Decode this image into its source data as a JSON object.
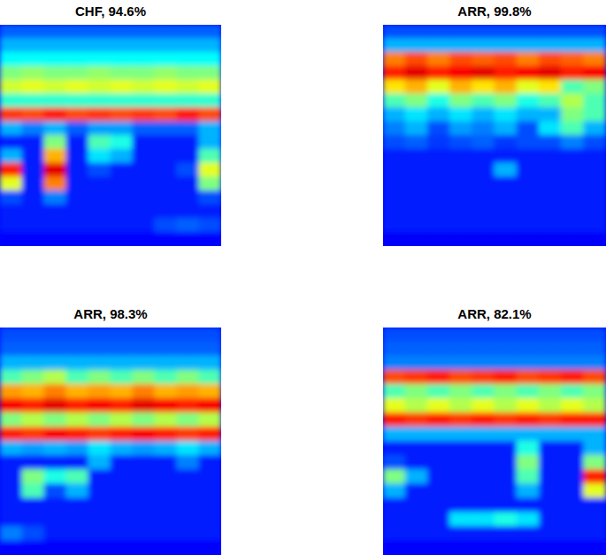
{
  "chart_data": [
    {
      "type": "heatmap",
      "title": "CHF, 94.6%",
      "tick_labels": false,
      "zlim": [
        0,
        1
      ],
      "cells": [
        [
          0.22,
          0.22,
          0.22,
          0.22,
          0.22,
          0.22,
          0.22,
          0.22,
          0.22,
          0.22
        ],
        [
          0.3,
          0.3,
          0.3,
          0.3,
          0.3,
          0.3,
          0.3,
          0.3,
          0.3,
          0.3
        ],
        [
          0.38,
          0.38,
          0.38,
          0.38,
          0.38,
          0.38,
          0.38,
          0.38,
          0.38,
          0.38
        ],
        [
          0.5,
          0.52,
          0.5,
          0.5,
          0.52,
          0.5,
          0.5,
          0.52,
          0.5,
          0.5
        ],
        [
          0.58,
          0.6,
          0.58,
          0.6,
          0.58,
          0.6,
          0.58,
          0.6,
          0.58,
          0.6
        ],
        [
          0.42,
          0.42,
          0.42,
          0.42,
          0.42,
          0.42,
          0.42,
          0.42,
          0.42,
          0.42
        ],
        [
          0.82,
          0.8,
          0.85,
          0.8,
          0.82,
          0.8,
          0.82,
          0.8,
          0.85,
          0.8
        ],
        [
          0.3,
          0.25,
          0.3,
          0.22,
          0.28,
          0.28,
          0.22,
          0.22,
          0.22,
          0.3
        ],
        [
          0.15,
          0.15,
          0.5,
          0.15,
          0.45,
          0.4,
          0.15,
          0.15,
          0.15,
          0.3
        ],
        [
          0.3,
          0.15,
          0.7,
          0.15,
          0.35,
          0.3,
          0.15,
          0.15,
          0.15,
          0.45
        ],
        [
          0.85,
          0.15,
          0.9,
          0.15,
          0.2,
          0.15,
          0.15,
          0.15,
          0.2,
          0.6
        ],
        [
          0.6,
          0.15,
          0.75,
          0.15,
          0.15,
          0.15,
          0.15,
          0.15,
          0.15,
          0.5
        ],
        [
          0.2,
          0.15,
          0.25,
          0.15,
          0.15,
          0.15,
          0.15,
          0.15,
          0.15,
          0.2
        ],
        [
          0.15,
          0.15,
          0.15,
          0.15,
          0.15,
          0.15,
          0.15,
          0.15,
          0.15,
          0.15
        ],
        [
          0.15,
          0.15,
          0.15,
          0.15,
          0.15,
          0.15,
          0.15,
          0.2,
          0.22,
          0.2
        ],
        [
          0.13,
          0.13,
          0.13,
          0.13,
          0.13,
          0.13,
          0.13,
          0.13,
          0.13,
          0.13
        ]
      ]
    },
    {
      "type": "heatmap",
      "title": "ARR, 99.8%",
      "tick_labels": false,
      "zlim": [
        0,
        1
      ],
      "cells": [
        [
          0.2,
          0.2,
          0.2,
          0.2,
          0.2,
          0.2,
          0.2,
          0.2,
          0.2,
          0.2
        ],
        [
          0.3,
          0.3,
          0.3,
          0.3,
          0.3,
          0.3,
          0.3,
          0.3,
          0.3,
          0.3
        ],
        [
          0.75,
          0.8,
          0.75,
          0.8,
          0.78,
          0.8,
          0.75,
          0.8,
          0.78,
          0.75
        ],
        [
          0.85,
          0.9,
          0.85,
          0.88,
          0.9,
          0.85,
          0.88,
          0.9,
          0.85,
          0.88
        ],
        [
          0.65,
          0.7,
          0.6,
          0.7,
          0.65,
          0.7,
          0.6,
          0.65,
          0.45,
          0.5
        ],
        [
          0.45,
          0.5,
          0.4,
          0.5,
          0.45,
          0.5,
          0.4,
          0.45,
          0.55,
          0.45
        ],
        [
          0.3,
          0.35,
          0.3,
          0.35,
          0.3,
          0.35,
          0.3,
          0.3,
          0.5,
          0.45
        ],
        [
          0.25,
          0.3,
          0.2,
          0.28,
          0.25,
          0.3,
          0.2,
          0.35,
          0.45,
          0.3
        ],
        [
          0.2,
          0.22,
          0.18,
          0.2,
          0.22,
          0.18,
          0.2,
          0.2,
          0.25,
          0.2
        ],
        [
          0.15,
          0.15,
          0.15,
          0.15,
          0.15,
          0.15,
          0.15,
          0.15,
          0.15,
          0.15
        ],
        [
          0.15,
          0.15,
          0.15,
          0.15,
          0.15,
          0.3,
          0.15,
          0.15,
          0.15,
          0.15
        ],
        [
          0.15,
          0.15,
          0.15,
          0.15,
          0.15,
          0.15,
          0.15,
          0.15,
          0.15,
          0.15
        ],
        [
          0.15,
          0.15,
          0.15,
          0.15,
          0.15,
          0.15,
          0.15,
          0.15,
          0.15,
          0.15
        ],
        [
          0.15,
          0.15,
          0.15,
          0.15,
          0.15,
          0.15,
          0.15,
          0.15,
          0.15,
          0.15
        ],
        [
          0.15,
          0.15,
          0.15,
          0.15,
          0.15,
          0.15,
          0.15,
          0.15,
          0.15,
          0.15
        ],
        [
          0.12,
          0.12,
          0.12,
          0.12,
          0.12,
          0.12,
          0.12,
          0.12,
          0.12,
          0.12
        ]
      ]
    },
    {
      "type": "heatmap",
      "title": "ARR, 98.3%",
      "tick_labels": false,
      "zlim": [
        0,
        1
      ],
      "cells": [
        [
          0.2,
          0.2,
          0.2,
          0.2,
          0.2,
          0.2,
          0.2,
          0.2,
          0.2,
          0.2
        ],
        [
          0.22,
          0.22,
          0.22,
          0.22,
          0.22,
          0.22,
          0.22,
          0.22,
          0.22,
          0.22
        ],
        [
          0.3,
          0.3,
          0.3,
          0.3,
          0.3,
          0.3,
          0.3,
          0.3,
          0.3,
          0.3
        ],
        [
          0.45,
          0.5,
          0.55,
          0.45,
          0.5,
          0.45,
          0.5,
          0.45,
          0.5,
          0.45
        ],
        [
          0.72,
          0.7,
          0.75,
          0.7,
          0.72,
          0.7,
          0.75,
          0.7,
          0.72,
          0.7
        ],
        [
          0.88,
          0.85,
          0.9,
          0.85,
          0.88,
          0.85,
          0.9,
          0.88,
          0.85,
          0.88
        ],
        [
          0.5,
          0.55,
          0.5,
          0.55,
          0.5,
          0.55,
          0.5,
          0.55,
          0.5,
          0.55
        ],
        [
          0.85,
          0.82,
          0.88,
          0.85,
          0.82,
          0.85,
          0.88,
          0.85,
          0.82,
          0.85
        ],
        [
          0.3,
          0.28,
          0.3,
          0.28,
          0.35,
          0.3,
          0.28,
          0.3,
          0.35,
          0.3
        ],
        [
          0.15,
          0.15,
          0.15,
          0.15,
          0.3,
          0.15,
          0.15,
          0.15,
          0.25,
          0.15
        ],
        [
          0.15,
          0.5,
          0.4,
          0.45,
          0.15,
          0.15,
          0.15,
          0.15,
          0.15,
          0.15
        ],
        [
          0.15,
          0.45,
          0.2,
          0.3,
          0.15,
          0.15,
          0.15,
          0.15,
          0.15,
          0.15
        ],
        [
          0.15,
          0.15,
          0.15,
          0.15,
          0.15,
          0.15,
          0.15,
          0.15,
          0.15,
          0.15
        ],
        [
          0.15,
          0.15,
          0.15,
          0.15,
          0.15,
          0.15,
          0.15,
          0.15,
          0.15,
          0.15
        ],
        [
          0.25,
          0.2,
          0.15,
          0.15,
          0.15,
          0.15,
          0.15,
          0.15,
          0.15,
          0.15
        ],
        [
          0.13,
          0.13,
          0.13,
          0.13,
          0.13,
          0.13,
          0.13,
          0.13,
          0.13,
          0.13
        ]
      ]
    },
    {
      "type": "heatmap",
      "title": "ARR, 82.1%",
      "tick_labels": false,
      "zlim": [
        0,
        1
      ],
      "cells": [
        [
          0.2,
          0.2,
          0.2,
          0.2,
          0.2,
          0.2,
          0.2,
          0.2,
          0.2,
          0.2
        ],
        [
          0.22,
          0.22,
          0.22,
          0.22,
          0.22,
          0.22,
          0.22,
          0.22,
          0.22,
          0.22
        ],
        [
          0.25,
          0.25,
          0.25,
          0.25,
          0.25,
          0.25,
          0.25,
          0.25,
          0.25,
          0.25
        ],
        [
          0.8,
          0.82,
          0.85,
          0.8,
          0.82,
          0.85,
          0.8,
          0.82,
          0.85,
          0.8
        ],
        [
          0.45,
          0.5,
          0.45,
          0.5,
          0.45,
          0.5,
          0.45,
          0.5,
          0.45,
          0.5
        ],
        [
          0.6,
          0.55,
          0.6,
          0.55,
          0.6,
          0.55,
          0.6,
          0.55,
          0.6,
          0.55
        ],
        [
          0.85,
          0.82,
          0.85,
          0.82,
          0.85,
          0.82,
          0.85,
          0.82,
          0.85,
          0.85
        ],
        [
          0.3,
          0.3,
          0.3,
          0.3,
          0.3,
          0.3,
          0.3,
          0.3,
          0.3,
          0.3
        ],
        [
          0.15,
          0.15,
          0.15,
          0.15,
          0.15,
          0.15,
          0.4,
          0.15,
          0.15,
          0.3
        ],
        [
          0.2,
          0.15,
          0.15,
          0.15,
          0.15,
          0.15,
          0.5,
          0.15,
          0.15,
          0.5
        ],
        [
          0.5,
          0.3,
          0.15,
          0.15,
          0.15,
          0.15,
          0.45,
          0.15,
          0.15,
          0.85
        ],
        [
          0.3,
          0.15,
          0.15,
          0.15,
          0.15,
          0.15,
          0.3,
          0.15,
          0.15,
          0.6
        ],
        [
          0.15,
          0.15,
          0.15,
          0.15,
          0.15,
          0.15,
          0.15,
          0.15,
          0.15,
          0.15
        ],
        [
          0.15,
          0.15,
          0.15,
          0.35,
          0.35,
          0.4,
          0.35,
          0.15,
          0.15,
          0.15
        ],
        [
          0.15,
          0.15,
          0.15,
          0.15,
          0.15,
          0.15,
          0.15,
          0.15,
          0.15,
          0.15
        ],
        [
          0.13,
          0.13,
          0.13,
          0.13,
          0.13,
          0.13,
          0.13,
          0.13,
          0.13,
          0.13
        ]
      ]
    }
  ]
}
